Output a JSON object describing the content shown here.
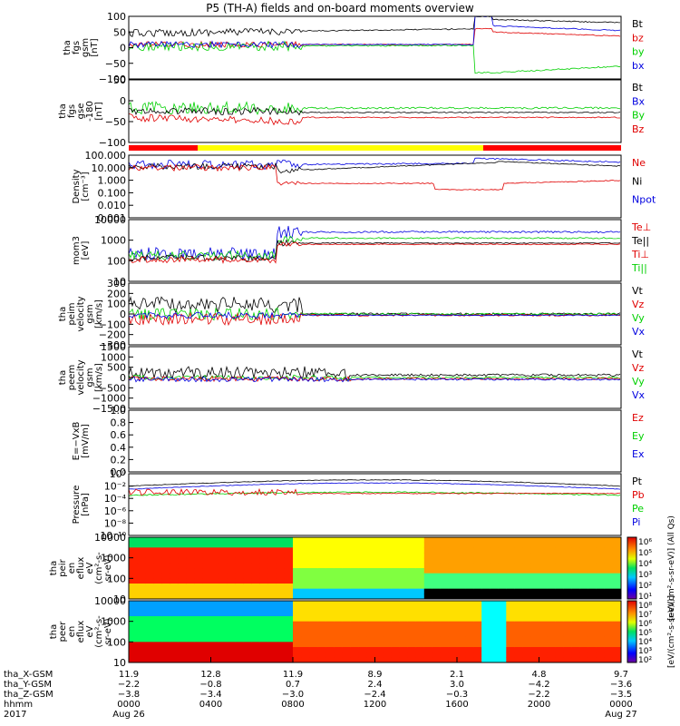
{
  "title": "P5 (TH-A) fields and on-board moments overview",
  "colors": {
    "black": "#000000",
    "red": "#e00000",
    "green": "#00d000",
    "blue": "#0000e0",
    "yellow": "#ffff00",
    "panel_red": "#ff0000"
  },
  "chart_data": [
    {
      "type": "line",
      "name_lines": [
        "tha",
        "fgs",
        "gsm",
        "[nT]"
      ],
      "yticks": [
        "100",
        "50",
        "0",
        "−50",
        "−100"
      ],
      "ylim": [
        -100,
        100
      ],
      "legend": [
        {
          "label": "Bt",
          "color": "#000000"
        },
        {
          "label": "bz",
          "color": "#e00000"
        },
        {
          "label": "by",
          "color": "#00d000"
        },
        {
          "label": "bx",
          "color": "#0000e0"
        }
      ]
    },
    {
      "type": "line",
      "name_lines": [
        "tha",
        "fgs",
        "gse",
        "-180",
        "[nT]"
      ],
      "yticks": [
        "50",
        "0",
        "−50",
        "−100"
      ],
      "ylim": [
        -125,
        65
      ],
      "legend": [
        {
          "label": "Bt",
          "color": "#000000"
        },
        {
          "label": "Bx",
          "color": "#0000e0"
        },
        {
          "label": "By",
          "color": "#00d000"
        },
        {
          "label": "Bz",
          "color": "#e00000"
        }
      ]
    },
    {
      "type": "line",
      "name_lines": [
        "Density",
        "[cm⁻³]"
      ],
      "yticks": [
        "100.000",
        "10.000",
        "1.000",
        "0.100",
        "0.010",
        "0.001"
      ],
      "log": true,
      "legend": [
        {
          "label": "Ne",
          "color": "#e00000"
        },
        {
          "label": "Ni",
          "color": "#000000"
        },
        {
          "label": "Npot",
          "color": "#0000e0"
        }
      ]
    },
    {
      "type": "line",
      "name_lines": [
        "mom3",
        "[eV]"
      ],
      "yticks": [
        "10000",
        "1000",
        "100",
        "10"
      ],
      "log": true,
      "legend": [
        {
          "label": "Te⊥",
          "color": "#e00000"
        },
        {
          "label": "Te||",
          "color": "#000000"
        },
        {
          "label": "Ti⊥",
          "color": "#e00000"
        },
        {
          "label": "Ti||",
          "color": "#00d000"
        }
      ]
    },
    {
      "type": "line",
      "name_lines": [
        "tha",
        "peim",
        "velocity",
        "gsm",
        "[km/s]"
      ],
      "yticks": [
        "300",
        "200",
        "100",
        "0",
        "−100",
        "−200",
        "−300"
      ],
      "ylim": [
        -300,
        300
      ],
      "legend": [
        {
          "label": "Vt",
          "color": "#000000"
        },
        {
          "label": "Vz",
          "color": "#e00000"
        },
        {
          "label": "Vy",
          "color": "#00d000"
        },
        {
          "label": "Vx",
          "color": "#0000e0"
        }
      ]
    },
    {
      "type": "line",
      "name_lines": [
        "tha",
        "peem",
        "velocity",
        "gsm",
        "[km/s]"
      ],
      "yticks": [
        "1500",
        "1000",
        "500",
        "0",
        "−500",
        "−1000",
        "−1500"
      ],
      "ylim": [
        -1500,
        1500
      ],
      "legend": [
        {
          "label": "Vt",
          "color": "#000000"
        },
        {
          "label": "Vz",
          "color": "#e00000"
        },
        {
          "label": "Vy",
          "color": "#00d000"
        },
        {
          "label": "Vx",
          "color": "#0000e0"
        }
      ]
    },
    {
      "type": "line",
      "name_lines": [
        "E=−VxB",
        "[mV/m]"
      ],
      "yticks": [
        "1.0",
        "0.8",
        "0.6",
        "0.4",
        "0.2",
        "0.0"
      ],
      "ylim": [
        0,
        1
      ],
      "legend": [
        {
          "label": "Ez",
          "color": "#e00000"
        },
        {
          "label": "Ey",
          "color": "#00d000"
        },
        {
          "label": "Ex",
          "color": "#0000e0"
        }
      ]
    },
    {
      "type": "line",
      "name_lines": [
        "Pressure",
        "[nPa]"
      ],
      "yticks": [
        "10⁰",
        "10⁻²",
        "10⁻⁴",
        "10⁻⁶",
        "10⁻⁸",
        "10⁻¹⁰"
      ],
      "log": true,
      "legend": [
        {
          "label": "Pt",
          "color": "#000000"
        },
        {
          "label": "Pb",
          "color": "#e00000"
        },
        {
          "label": "Pe",
          "color": "#00d000"
        },
        {
          "label": "Pi",
          "color": "#0000e0"
        }
      ]
    },
    {
      "type": "heatmap",
      "name_lines": [
        "tha",
        "peir",
        "en",
        "eflux",
        "eV",
        "(cm²-s-",
        "sr-eV)"
      ],
      "yticks": [
        "10000",
        "1000",
        "100",
        "10"
      ],
      "log": true
    },
    {
      "type": "heatmap",
      "name_lines": [
        "tha",
        "peer",
        "en",
        "eflux",
        "eV",
        "(cm²-s-",
        "sr-eV)"
      ],
      "yticks": [
        "10000",
        "1000",
        "100",
        "10"
      ],
      "log": true
    }
  ],
  "colorbars": [
    {
      "ticks": [
        "10⁶",
        "10⁵",
        "10⁴",
        "10³",
        "10²",
        "10¹"
      ],
      "label": "[eV/(cm²-s-sr-eV)] (All Qs)"
    },
    {
      "ticks": [
        "10⁸",
        "10⁷",
        "10⁶",
        "10⁵",
        "10⁴",
        "10³",
        "10²"
      ],
      "label": "[eV/(cm²-s-sr-eV)]"
    }
  ],
  "x_axis": {
    "row_labels": [
      "tha_X-GSM",
      "tha_Y-GSM",
      "tha_Z-GSM",
      "hhmm",
      "2017"
    ],
    "ticks": [
      {
        "x": "11.9",
        "y": "−2.2",
        "z": "−3.8",
        "hhmm": "0000",
        "date": "Aug 26"
      },
      {
        "x": "12.8",
        "y": "−0.8",
        "z": "−3.4",
        "hhmm": "0400",
        "date": ""
      },
      {
        "x": "11.9",
        "y": "0.7",
        "z": "−3.0",
        "hhmm": "0800",
        "date": ""
      },
      {
        "x": "8.9",
        "y": "2.4",
        "z": "−2.4",
        "hhmm": "1200",
        "date": ""
      },
      {
        "x": "2.1",
        "y": "3.0",
        "z": "−0.3",
        "hhmm": "1600",
        "date": ""
      },
      {
        "x": "4.8",
        "y": "−4.2",
        "z": "−2.2",
        "hhmm": "2000",
        "date": ""
      },
      {
        "x": "9.7",
        "y": "−3.6",
        "z": "−3.5",
        "hhmm": "0000",
        "date": "Aug 27"
      }
    ]
  }
}
